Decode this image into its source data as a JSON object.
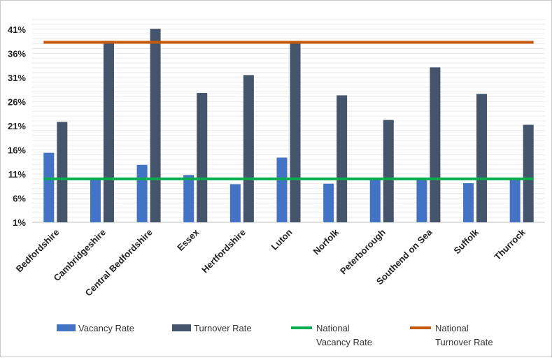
{
  "chart_data": {
    "type": "bar",
    "title": "",
    "xlabel": "",
    "ylabel": "",
    "ylim": [
      1,
      43
    ],
    "yticks": [
      "1%",
      "6%",
      "11%",
      "16%",
      "21%",
      "26%",
      "31%",
      "36%",
      "41%"
    ],
    "ytick_values": [
      1,
      6,
      11,
      16,
      21,
      26,
      31,
      36,
      41
    ],
    "grid": true,
    "legend_position": "bottom",
    "categories": [
      "Bedfordshire",
      "Cambridgeshire",
      "Central Bedfordshire",
      "Essex",
      "Hertfordshire",
      "Luton",
      "Norfolk",
      "Peterborough",
      "Southend on Sea",
      "Suffolk",
      "Thurrock"
    ],
    "series": [
      {
        "name": "Vacancy Rate",
        "type": "bar",
        "color": "#4472c4",
        "values": [
          15.4,
          10.0,
          12.9,
          10.8,
          8.9,
          14.4,
          9.0,
          10.0,
          10.1,
          9.1,
          10.0
        ]
      },
      {
        "name": "Turnover Rate",
        "type": "bar",
        "color": "#44546a",
        "values": [
          21.8,
          38.6,
          41.1,
          27.8,
          31.5,
          38.3,
          27.3,
          22.2,
          33.1,
          27.6,
          21.2
        ]
      }
    ],
    "reference_lines": [
      {
        "name": "National\nVacancy Rate",
        "lines": [
          "National",
          "Vacancy Rate"
        ],
        "value": 10.0,
        "color": "#00b050"
      },
      {
        "name": "National\nTurnover Rate",
        "lines": [
          "National",
          "Turnover Rate"
        ],
        "value": 38.3,
        "color": "#c55a11"
      }
    ]
  }
}
